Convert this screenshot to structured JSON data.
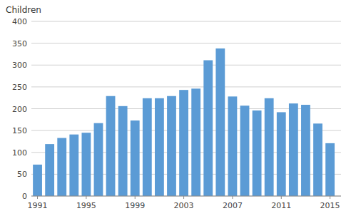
{
  "chart_data": {
    "type": "bar",
    "y_label": "Children",
    "x": [
      1991,
      1992,
      1993,
      1994,
      1995,
      1996,
      1997,
      1998,
      1999,
      2000,
      2001,
      2002,
      2003,
      2004,
      2005,
      2006,
      2007,
      2008,
      2009,
      2010,
      2011,
      2012,
      2013,
      2014,
      2015
    ],
    "values": [
      72,
      119,
      133,
      141,
      145,
      167,
      229,
      206,
      173,
      224,
      224,
      229,
      243,
      246,
      311,
      338,
      228,
      207,
      196,
      224,
      192,
      212,
      209,
      166,
      121
    ],
    "color": "#5b9bd5",
    "xlim": [
      1990.5,
      2015.9
    ],
    "xticks": [
      1991,
      1995,
      1999,
      2003,
      2007,
      2011,
      2015
    ],
    "ylim": [
      0,
      400
    ],
    "yticks": [
      0,
      50,
      100,
      150,
      200,
      250,
      300,
      350,
      400
    ],
    "grid": true
  }
}
